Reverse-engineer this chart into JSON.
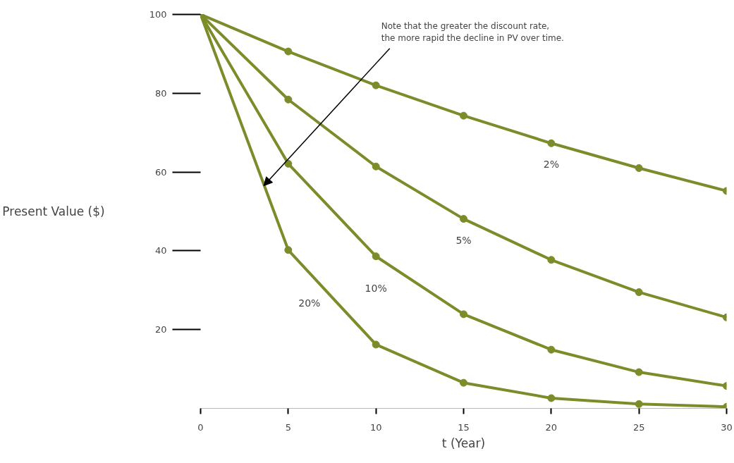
{
  "chart_data": {
    "type": "line",
    "xlabel": "t (Year)",
    "ylabel": "Present Value ($)",
    "x": [
      0,
      5,
      10,
      15,
      20,
      25,
      30
    ],
    "series": [
      {
        "name": "2%",
        "color": "#7d8c2a",
        "values": [
          100,
          90.6,
          82.0,
          74.3,
          67.3,
          61.0,
          55.2
        ]
      },
      {
        "name": "5%",
        "color": "#7d8c2a",
        "values": [
          100,
          78.4,
          61.4,
          48.1,
          37.7,
          29.5,
          23.1
        ]
      },
      {
        "name": "10%",
        "color": "#7d8c2a",
        "values": [
          100,
          62.1,
          38.6,
          23.9,
          14.9,
          9.2,
          5.7
        ]
      },
      {
        "name": "20%",
        "color": "#7d8c2a",
        "values": [
          100,
          40.2,
          16.2,
          6.5,
          2.6,
          1.1,
          0.4
        ]
      }
    ],
    "xlim": [
      0,
      30
    ],
    "ylim": [
      0,
      100
    ],
    "xticks": [
      0,
      5,
      10,
      15,
      20,
      25,
      30
    ],
    "yticks": [
      20,
      40,
      60,
      80,
      100
    ],
    "marker": "circle",
    "grid": false,
    "annotations": [
      {
        "text": "Note that the greater the discount rate,\nthe more rapid the decline in PV over time.",
        "x": 3.6,
        "y": 56.5
      }
    ]
  }
}
